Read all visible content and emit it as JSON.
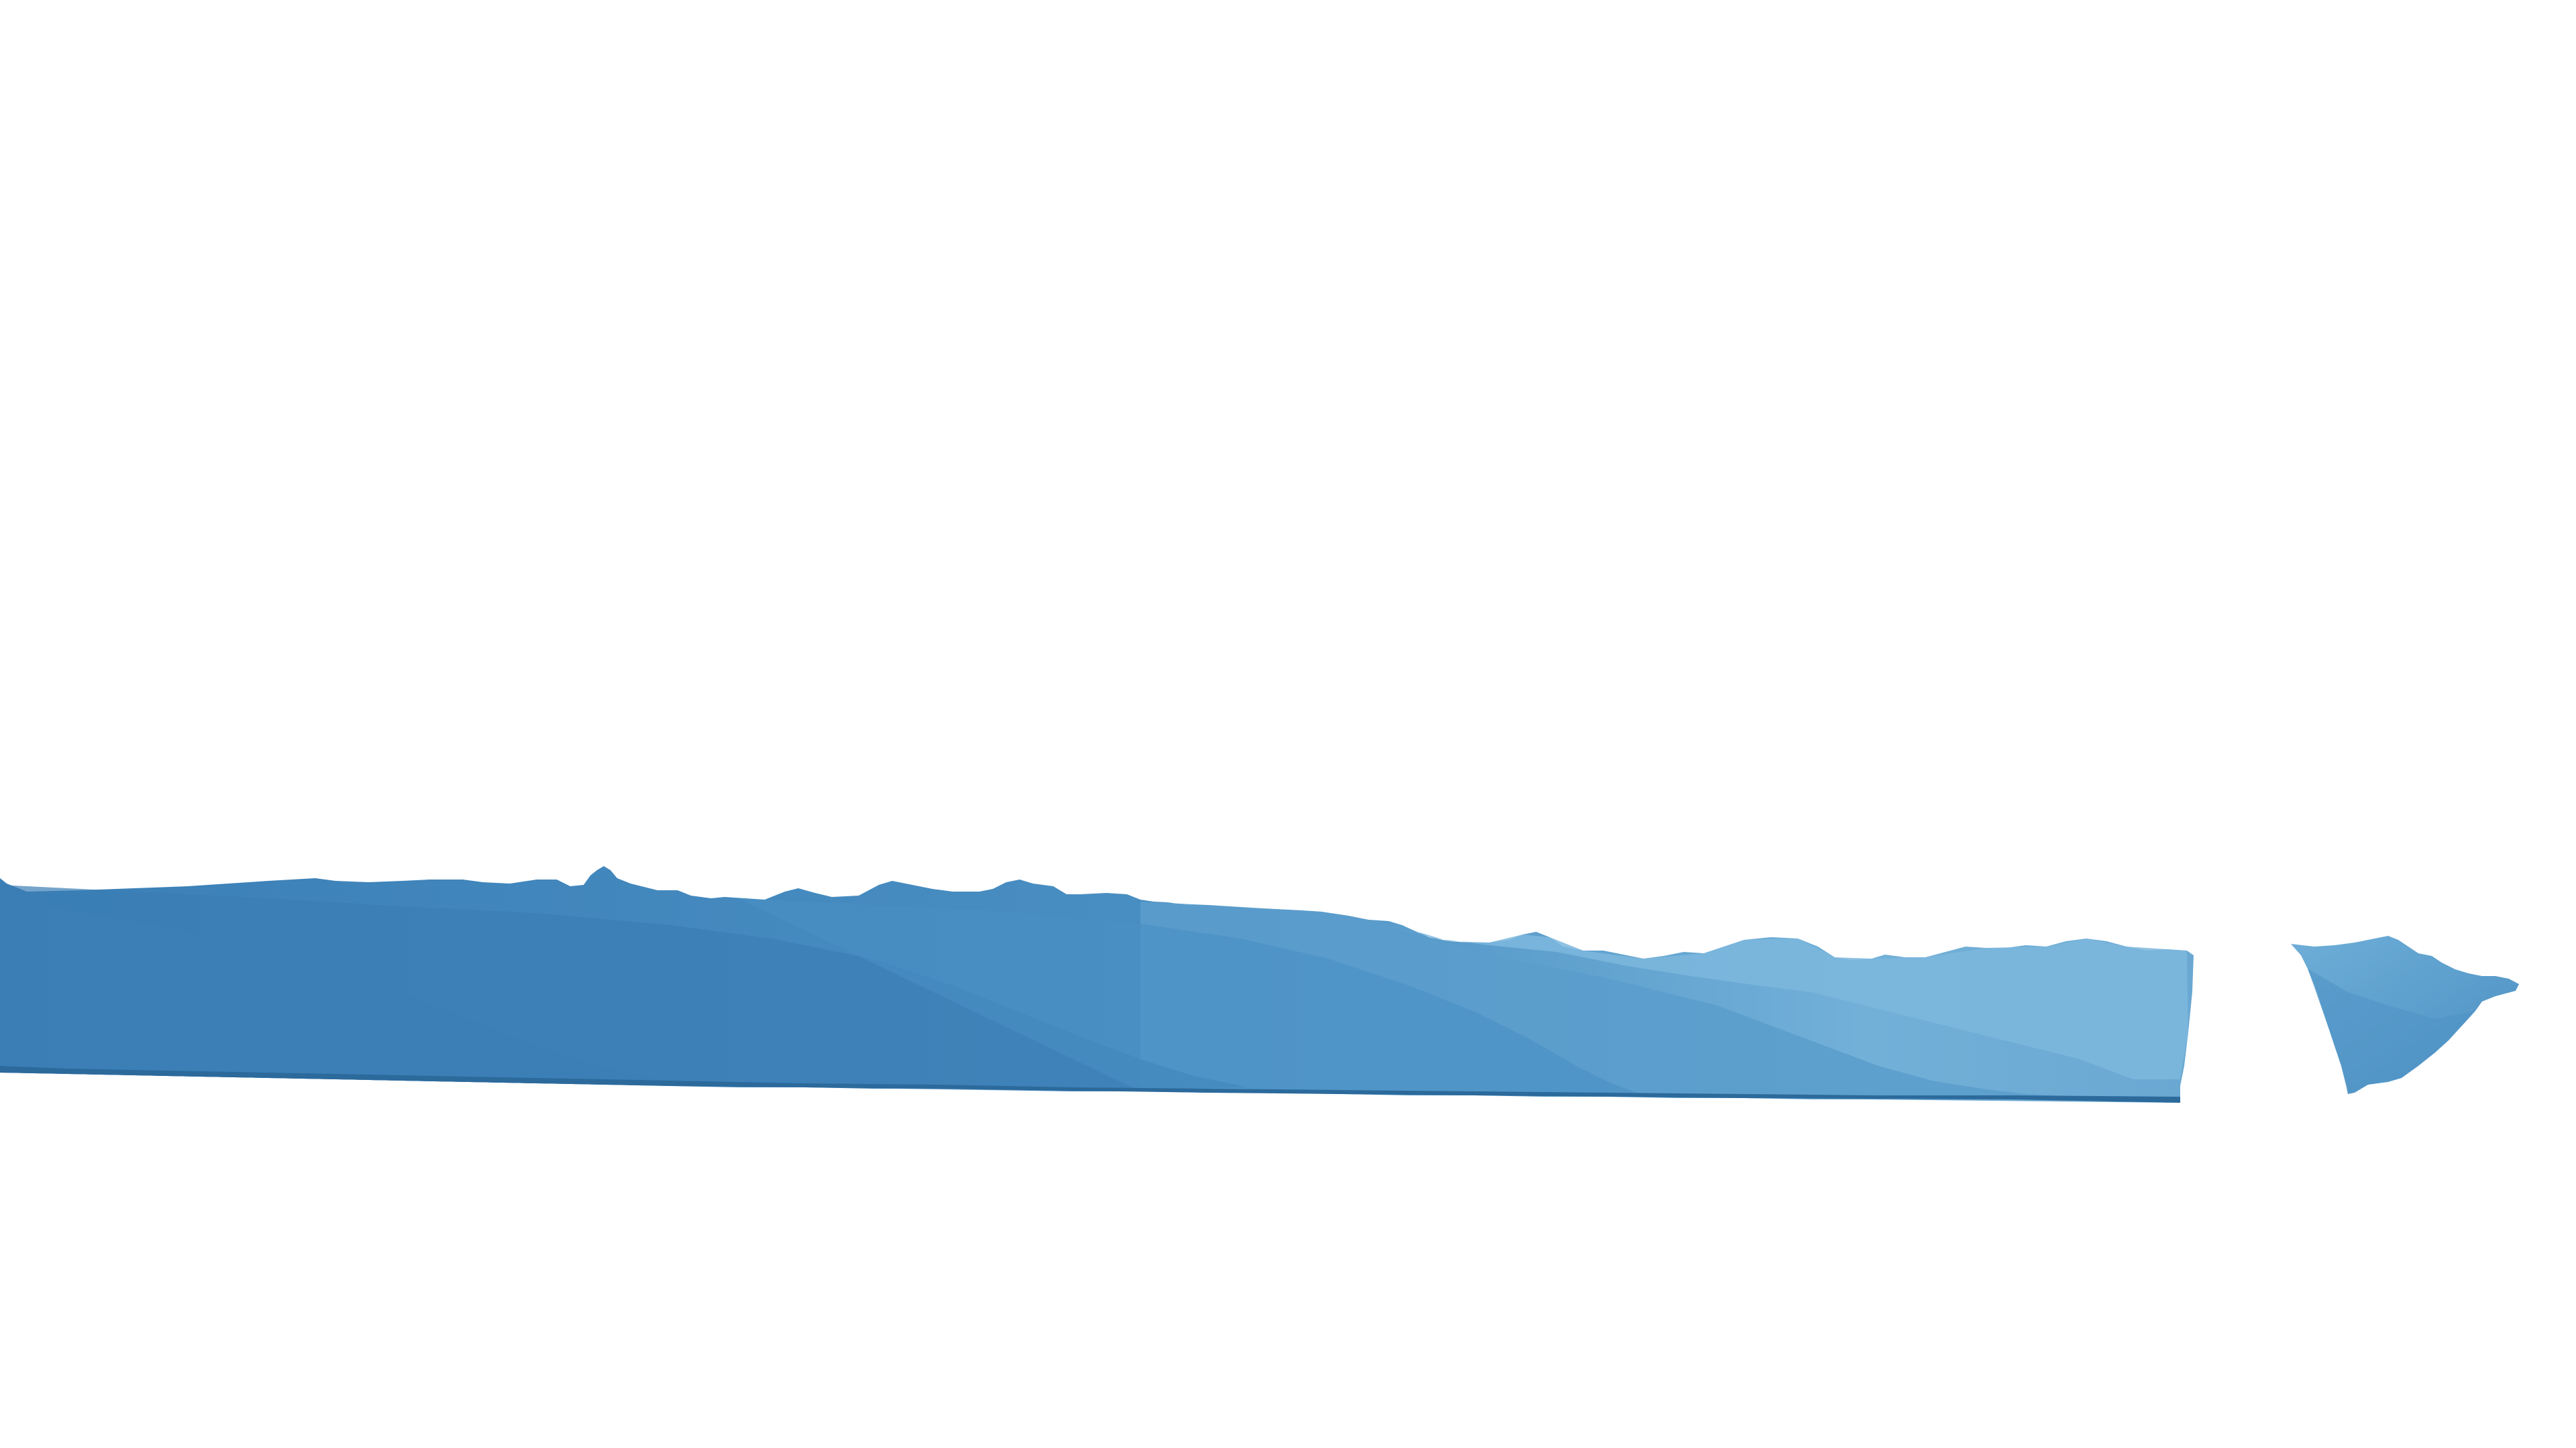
{
  "scene": {
    "description_kind": "mountain-silhouette-cutout",
    "background_color": "#ffffff",
    "colors": {
      "far_range": "#7fb8dc",
      "mid_range": "#5a9ccc",
      "near_range": "#3f83ba",
      "front_ridge": "#3476ad",
      "shore": "#2c6a9c",
      "fragment": "#6aaad6",
      "fragment_shade": "#4f92c4"
    },
    "pieces": [
      "main-strip",
      "triangular-fragment"
    ]
  }
}
